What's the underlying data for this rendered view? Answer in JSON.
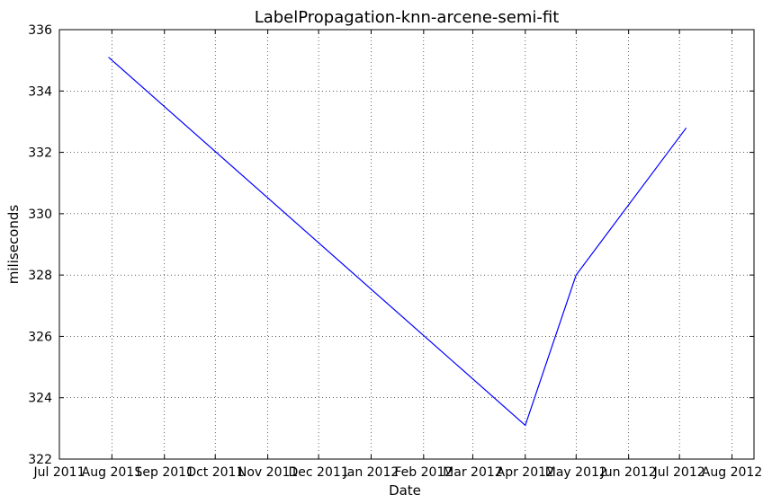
{
  "chart_data": {
    "type": "line",
    "title": "LabelPropagation-knn-arcene-semi-fit",
    "xlabel": "Date",
    "ylabel": "miliseconds",
    "x_ticks": [
      "2011-07-01",
      "2011-08-01",
      "2011-09-01",
      "2011-10-01",
      "2011-11-01",
      "2011-12-01",
      "2012-01-01",
      "2012-02-01",
      "2012-03-01",
      "2012-04-01",
      "2012-05-01",
      "2012-06-01",
      "2012-07-01",
      "2012-08-01"
    ],
    "x_tick_labels": [
      "Jul 2011",
      "Aug 2011",
      "Sep 2011",
      "Oct 2011",
      "Nov 2011",
      "Dec 2011",
      "Jan 2012",
      "Feb 2012",
      "Mar 2012",
      "Apr 2012",
      "May 2012",
      "Jun 2012",
      "Jul 2012",
      "Aug 2012"
    ],
    "xlim": [
      "2011-07-01",
      "2012-08-14"
    ],
    "ylim": [
      322,
      336
    ],
    "y_ticks": [
      322,
      324,
      326,
      328,
      330,
      332,
      334,
      336
    ],
    "grid": true,
    "series": [
      {
        "color": "#0000ff",
        "points": [
          {
            "x": "2011-07-30",
            "y": 335.1
          },
          {
            "x": "2012-04-01",
            "y": 323.1
          },
          {
            "x": "2012-05-01",
            "y": 328.0
          },
          {
            "x": "2012-07-05",
            "y": 332.8
          }
        ]
      }
    ]
  }
}
